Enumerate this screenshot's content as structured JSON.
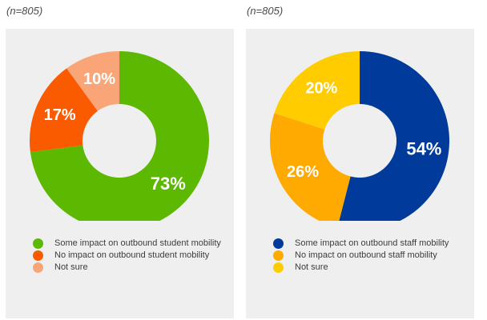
{
  "chart_data": [
    {
      "type": "pie",
      "subtitle": "(n=805)",
      "categories": [
        "Some impact on outbound student mobility",
        "No impact on outbound student mobility",
        "Not sure"
      ],
      "values": [
        73,
        17,
        10
      ],
      "labels": [
        "73%",
        "17%",
        "10%"
      ],
      "colors": [
        "#5cb800",
        "#fa5a00",
        "#f9a578"
      ],
      "donut": true,
      "legend_position": "bottom"
    },
    {
      "type": "pie",
      "subtitle": "(n=805)",
      "categories": [
        "Some impact on outbound staff mobility",
        "No impact on outbound staff mobility",
        "Not sure"
      ],
      "values": [
        54,
        26,
        20
      ],
      "labels": [
        "54%",
        "26%",
        "20%"
      ],
      "colors": [
        "#003a9b",
        "#ffaa00",
        "#ffcc00"
      ],
      "donut": true,
      "legend_position": "bottom"
    }
  ],
  "legends": [
    [
      "Some impact on outbound student mobility",
      "No impact on outbound student mobility",
      "Not sure"
    ],
    [
      "Some impact on outbound staff mobility",
      "No impact on outbound staff mobility",
      "Not sure"
    ]
  ]
}
